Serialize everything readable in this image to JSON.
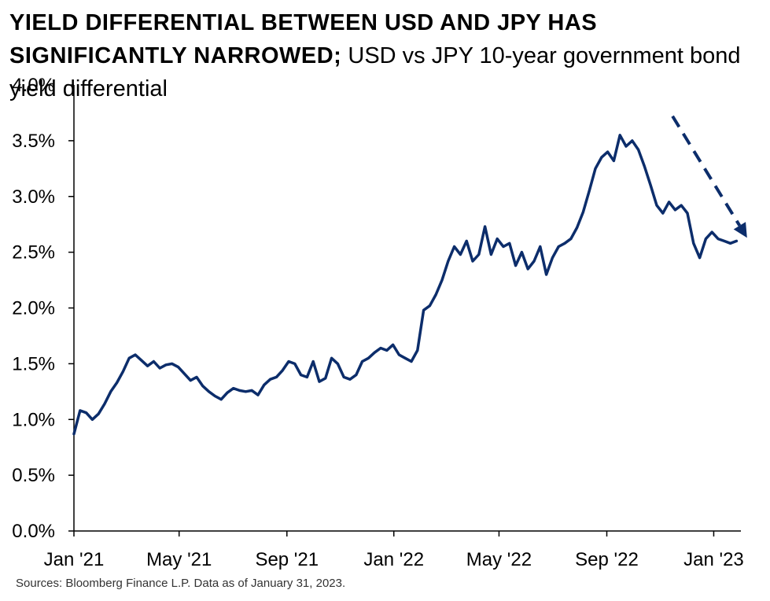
{
  "title_bold": "YIELD DIFFERENTIAL BETWEEN USD AND JPY HAS SIGNIFICANTLY NARROWED;",
  "title_rest": " USD vs JPY 10-year government bond yield differential",
  "source": "Sources: Bloomberg Finance L.P. Data as of January 31, 2023.",
  "colors": {
    "line": "#0c2d6b",
    "axis": "#000000"
  },
  "chart_data": {
    "type": "line",
    "title": "YIELD DIFFERENTIAL BETWEEN USD AND JPY HAS SIGNIFICANTLY NARROWED; USD vs JPY 10-year government bond yield differential",
    "xlabel": "",
    "ylabel": "",
    "ylim": [
      0,
      4.0
    ],
    "xlim": [
      "2021-01-01",
      "2023-02-01"
    ],
    "y_ticks": [
      "0.0%",
      "0.5%",
      "1.0%",
      "1.5%",
      "2.0%",
      "2.5%",
      "3.0%",
      "3.5%",
      "4.0%"
    ],
    "y_tick_values": [
      0,
      0.5,
      1.0,
      1.5,
      2.0,
      2.5,
      3.0,
      3.5,
      4.0
    ],
    "x_ticks": [
      "Jan '21",
      "May '21",
      "Sep '21",
      "Jan '22",
      "May '22",
      "Sep '22",
      "Jan '23"
    ],
    "x_tick_dates": [
      "2021-01-01",
      "2021-05-01",
      "2021-09-01",
      "2022-01-01",
      "2022-05-01",
      "2022-09-01",
      "2023-01-01"
    ],
    "grid": false,
    "series": [
      {
        "x": [
          "2021-01-01",
          "2021-01-08",
          "2021-01-15",
          "2021-01-22",
          "2021-01-29",
          "2021-02-05",
          "2021-02-12",
          "2021-02-19",
          "2021-02-26",
          "2021-03-05",
          "2021-03-12",
          "2021-03-19",
          "2021-03-26",
          "2021-04-02",
          "2021-04-09",
          "2021-04-16",
          "2021-04-23",
          "2021-04-30",
          "2021-05-07",
          "2021-05-14",
          "2021-05-21",
          "2021-05-28",
          "2021-06-04",
          "2021-06-11",
          "2021-06-18",
          "2021-06-25",
          "2021-07-02",
          "2021-07-09",
          "2021-07-16",
          "2021-07-23",
          "2021-07-30",
          "2021-08-06",
          "2021-08-13",
          "2021-08-20",
          "2021-08-27",
          "2021-09-03",
          "2021-09-10",
          "2021-09-17",
          "2021-09-24",
          "2021-10-01",
          "2021-10-08",
          "2021-10-15",
          "2021-10-22",
          "2021-10-29",
          "2021-11-05",
          "2021-11-12",
          "2021-11-19",
          "2021-11-26",
          "2021-12-03",
          "2021-12-10",
          "2021-12-17",
          "2021-12-24",
          "2021-12-31",
          "2022-01-07",
          "2022-01-14",
          "2022-01-21",
          "2022-01-28",
          "2022-02-04",
          "2022-02-11",
          "2022-02-18",
          "2022-02-25",
          "2022-03-04",
          "2022-03-11",
          "2022-03-18",
          "2022-03-25",
          "2022-04-01",
          "2022-04-08",
          "2022-04-15",
          "2022-04-22",
          "2022-04-29",
          "2022-05-06",
          "2022-05-13",
          "2022-05-20",
          "2022-05-27",
          "2022-06-03",
          "2022-06-10",
          "2022-06-17",
          "2022-06-24",
          "2022-07-01",
          "2022-07-08",
          "2022-07-15",
          "2022-07-22",
          "2022-07-29",
          "2022-08-05",
          "2022-08-12",
          "2022-08-19",
          "2022-08-26",
          "2022-09-02",
          "2022-09-09",
          "2022-09-16",
          "2022-09-23",
          "2022-09-30",
          "2022-10-07",
          "2022-10-14",
          "2022-10-21",
          "2022-10-28",
          "2022-11-04",
          "2022-11-11",
          "2022-11-18",
          "2022-11-25",
          "2022-12-02",
          "2022-12-09",
          "2022-12-16",
          "2022-12-23",
          "2022-12-30",
          "2023-01-06",
          "2023-01-13",
          "2023-01-20",
          "2023-01-27"
        ],
        "values": [
          0.87,
          1.08,
          1.06,
          1.0,
          1.05,
          1.14,
          1.25,
          1.33,
          1.43,
          1.55,
          1.58,
          1.53,
          1.48,
          1.52,
          1.46,
          1.49,
          1.5,
          1.47,
          1.41,
          1.35,
          1.38,
          1.3,
          1.25,
          1.21,
          1.18,
          1.24,
          1.28,
          1.26,
          1.25,
          1.26,
          1.22,
          1.31,
          1.36,
          1.38,
          1.44,
          1.52,
          1.5,
          1.4,
          1.38,
          1.52,
          1.34,
          1.37,
          1.55,
          1.5,
          1.38,
          1.36,
          1.4,
          1.52,
          1.55,
          1.6,
          1.64,
          1.62,
          1.67,
          1.58,
          1.55,
          1.52,
          1.62,
          1.98,
          2.02,
          2.12,
          2.25,
          2.42,
          2.55,
          2.48,
          2.6,
          2.42,
          2.48,
          2.73,
          2.48,
          2.62,
          2.55,
          2.58,
          2.38,
          2.5,
          2.35,
          2.42,
          2.55,
          2.3,
          2.45,
          2.55,
          2.58,
          2.62,
          2.72,
          2.86,
          3.05,
          3.25,
          3.35,
          3.4,
          3.32,
          3.55,
          3.45,
          3.5,
          3.42,
          3.27,
          3.1,
          2.92,
          2.85,
          2.95,
          2.88,
          2.92,
          2.85,
          2.58,
          2.45,
          2.62,
          2.68,
          2.62,
          2.6,
          2.58,
          2.6
        ]
      }
    ],
    "annotations": [
      {
        "type": "dashed-arrow",
        "description": "downward trend",
        "from": [
          "2022-11-15",
          3.72
        ],
        "to": [
          "2023-02-08",
          2.63
        ]
      }
    ]
  }
}
